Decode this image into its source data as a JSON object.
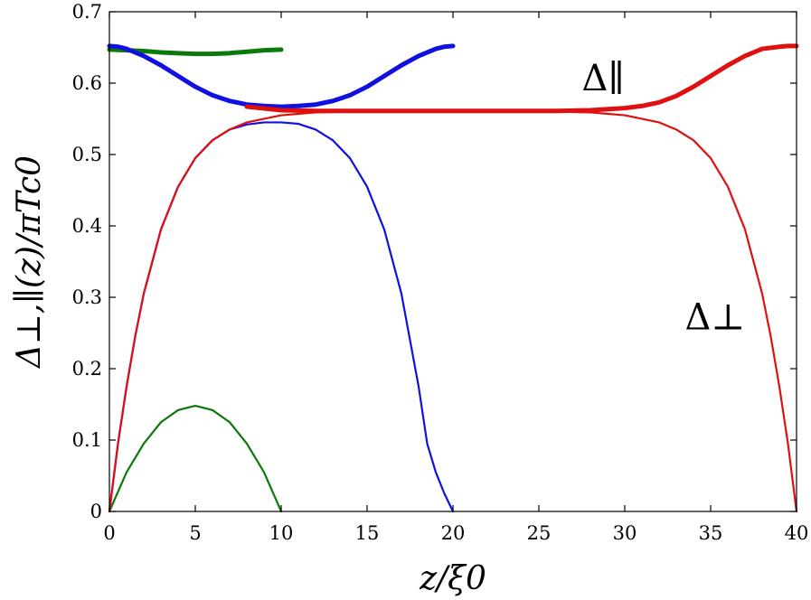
{
  "chart_data": {
    "type": "line",
    "xlabel": "z/ξ0",
    "ylabel": "Δ⊥,∥(z)/πTc0",
    "xlim": [
      0,
      40
    ],
    "ylim": [
      0,
      0.7
    ],
    "xticks": [
      "0",
      "5",
      "10",
      "15",
      "20",
      "25",
      "30",
      "35",
      "40"
    ],
    "yticks": [
      "0",
      "0.1",
      "0.2",
      "0.3",
      "0.4",
      "0.5",
      "0.6",
      "0.7"
    ],
    "grid": false,
    "legend": "none",
    "annotations": [
      {
        "text": "Δ∥",
        "x": 27.5,
        "y": 0.59
      },
      {
        "text": "Δ⊥",
        "x": 33.5,
        "y": 0.255
      }
    ],
    "series": [
      {
        "color": "#0b7a0b",
        "role": "perp",
        "thickness": "thin",
        "x": [
          0,
          1,
          2,
          3,
          4,
          5,
          6,
          7,
          8,
          9,
          10
        ],
        "y": [
          0,
          0.055,
          0.095,
          0.125,
          0.142,
          0.148,
          0.142,
          0.125,
          0.095,
          0.055,
          0
        ]
      },
      {
        "color": "#0b7a0b",
        "role": "parallel",
        "thickness": "thick",
        "x": [
          0,
          1,
          2,
          3,
          4,
          5,
          6,
          7,
          8,
          9,
          10
        ],
        "y": [
          0.647,
          0.646,
          0.645,
          0.643,
          0.642,
          0.641,
          0.641,
          0.642,
          0.644,
          0.646,
          0.647
        ]
      },
      {
        "color": "#1010e0",
        "role": "perp",
        "thickness": "thin",
        "x": [
          0,
          0.5,
          1,
          1.5,
          2,
          3,
          4,
          5,
          6,
          7,
          8,
          9,
          10,
          11,
          12,
          13,
          14,
          15,
          16,
          17,
          18,
          18.5,
          19,
          19.5,
          20
        ],
        "y": [
          0,
          0.095,
          0.175,
          0.245,
          0.305,
          0.395,
          0.455,
          0.495,
          0.52,
          0.535,
          0.542,
          0.545,
          0.545,
          0.543,
          0.535,
          0.52,
          0.495,
          0.455,
          0.395,
          0.305,
          0.175,
          0.095,
          0.055,
          0.025,
          0
        ]
      },
      {
        "color": "#1010e0",
        "role": "parallel",
        "thickness": "thick",
        "x": [
          0,
          0.5,
          1,
          2,
          3,
          4,
          5,
          6,
          7,
          8,
          9,
          10,
          11,
          12,
          13,
          14,
          15,
          16,
          17,
          18,
          19,
          19.5,
          20
        ],
        "y": [
          0.652,
          0.651,
          0.648,
          0.638,
          0.625,
          0.61,
          0.595,
          0.583,
          0.575,
          0.57,
          0.568,
          0.567,
          0.568,
          0.57,
          0.575,
          0.583,
          0.595,
          0.61,
          0.625,
          0.638,
          0.648,
          0.651,
          0.652
        ]
      },
      {
        "color": "#e01010",
        "role": "perp",
        "thickness": "thin",
        "x": [
          0,
          0.5,
          1,
          1.5,
          2,
          3,
          4,
          5,
          6,
          7,
          8,
          10,
          12,
          14,
          20,
          26,
          28,
          30,
          32,
          33,
          34,
          35,
          36,
          37,
          38,
          38.5,
          39,
          39.5,
          40
        ],
        "y": [
          0,
          0.095,
          0.175,
          0.245,
          0.305,
          0.395,
          0.455,
          0.495,
          0.52,
          0.535,
          0.545,
          0.555,
          0.559,
          0.56,
          0.56,
          0.56,
          0.559,
          0.555,
          0.545,
          0.535,
          0.52,
          0.495,
          0.455,
          0.395,
          0.305,
          0.245,
          0.175,
          0.095,
          0
        ]
      },
      {
        "color": "#e01010",
        "role": "parallel",
        "thickness": "thick",
        "x": [
          8,
          10,
          12,
          14,
          20,
          26,
          28,
          30,
          31,
          32,
          33,
          34,
          35,
          36,
          37,
          38,
          39,
          39.5,
          40
        ],
        "y": [
          0.567,
          0.562,
          0.561,
          0.561,
          0.561,
          0.561,
          0.562,
          0.565,
          0.568,
          0.573,
          0.582,
          0.595,
          0.61,
          0.625,
          0.638,
          0.648,
          0.651,
          0.652,
          0.652
        ]
      }
    ]
  }
}
